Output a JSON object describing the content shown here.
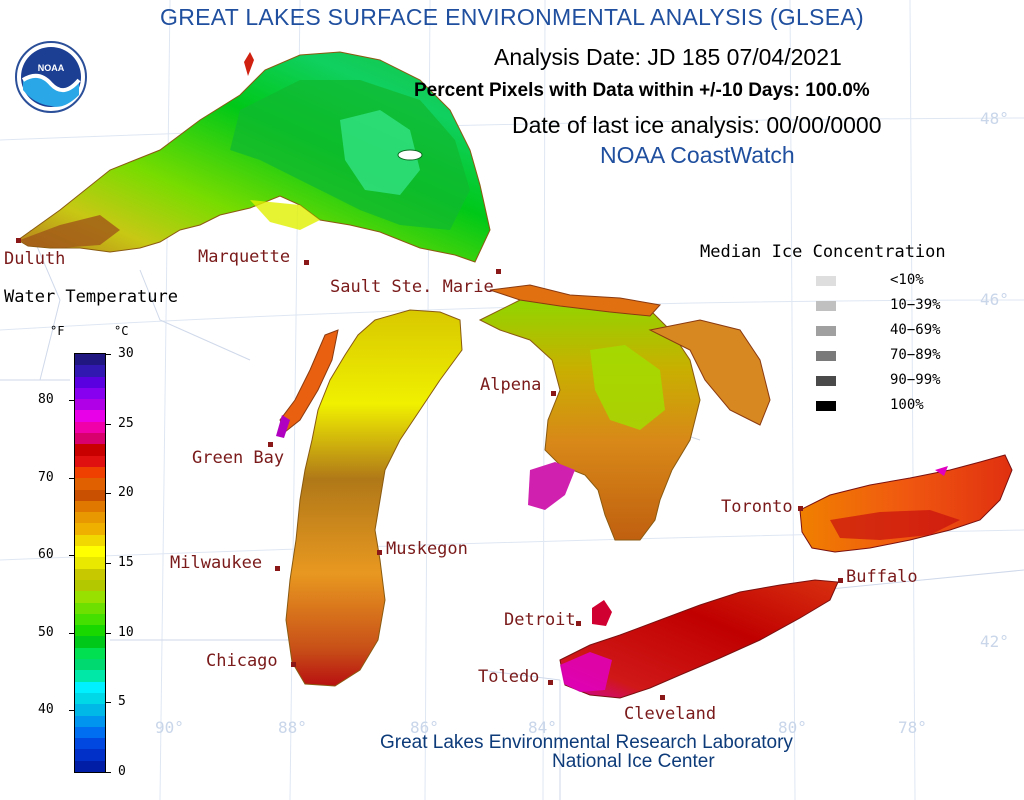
{
  "header": {
    "title": "GREAT LAKES SURFACE ENVIRONMENTAL ANALYSIS (GLSEA)",
    "analysis_date": "Analysis Date:  JD 185 07/04/2021",
    "percent_pixels": "Percent Pixels with Data within +/-10 Days: 100.0%",
    "last_ice_analysis": "Date of last ice analysis: 00/00/0000",
    "provider": "NOAA CoastWatch"
  },
  "logo": {
    "text": "NOAA",
    "icon": "noaa-logo-icon"
  },
  "cities": [
    {
      "name": "Duluth",
      "key": "duluth"
    },
    {
      "name": "Marquette",
      "key": "marquette"
    },
    {
      "name": "Sault Ste. Marie",
      "key": "sault-ste-marie"
    },
    {
      "name": "Green Bay",
      "key": "green-bay"
    },
    {
      "name": "Alpena",
      "key": "alpena"
    },
    {
      "name": "Toronto",
      "key": "toronto"
    },
    {
      "name": "Buffalo",
      "key": "buffalo"
    },
    {
      "name": "Milwaukee",
      "key": "milwaukee"
    },
    {
      "name": "Muskegon",
      "key": "muskegon"
    },
    {
      "name": "Detroit",
      "key": "detroit"
    },
    {
      "name": "Chicago",
      "key": "chicago"
    },
    {
      "name": "Toledo",
      "key": "toledo"
    },
    {
      "name": "Cleveland",
      "key": "cleveland"
    }
  ],
  "grid_labels": {
    "lat_48": "48°",
    "lat_46": "46°",
    "lat_42": "42°",
    "lon_90": "90°",
    "lon_88": "88°",
    "lon_86": "86°",
    "lon_84": "84°",
    "lon_80": "80°",
    "lon_78": "78°"
  },
  "legend": {
    "title": "Water Temperature",
    "unit_f": "°F",
    "unit_c": "°C",
    "f_ticks": [
      "80",
      "70",
      "60",
      "50",
      "40"
    ],
    "c_ticks": [
      "30",
      "25",
      "20",
      "15",
      "10",
      "5",
      "0"
    ],
    "scale_min_c": 0,
    "scale_max_c": 30,
    "colors_bottom_to_top": [
      "#001ea6",
      "#0030c8",
      "#0048e0",
      "#006ef0",
      "#0096f0",
      "#00b8e8",
      "#00d8e8",
      "#00f0ff",
      "#00e8a8",
      "#00d870",
      "#00e050",
      "#00c818",
      "#18d800",
      "#44e000",
      "#6ee000",
      "#98e000",
      "#b4c800",
      "#c8c800",
      "#e8e800",
      "#ffff00",
      "#f0d800",
      "#f0b000",
      "#e89800",
      "#e07800",
      "#c85000",
      "#e06000",
      "#f04000",
      "#e01010",
      "#c80000",
      "#d8006c",
      "#f000a8",
      "#e800e8",
      "#b000e8",
      "#8800f0",
      "#5a00e0",
      "#3018b0",
      "#201880"
    ]
  },
  "ice_legend": {
    "title": "Median Ice Concentration",
    "items": [
      {
        "label": "<10%",
        "color": "#dedede"
      },
      {
        "label": "10−39%",
        "color": "#c0c0c0"
      },
      {
        "label": "40−69%",
        "color": "#a0a0a0"
      },
      {
        "label": "70−89%",
        "color": "#7a7a7a"
      },
      {
        "label": "90−99%",
        "color": "#4a4a4a"
      },
      {
        "label": "100%",
        "color": "#000000"
      }
    ]
  },
  "footer": {
    "line1": "Great Lakes Environmental Research Laboratory",
    "line2": "National Ice Center"
  }
}
